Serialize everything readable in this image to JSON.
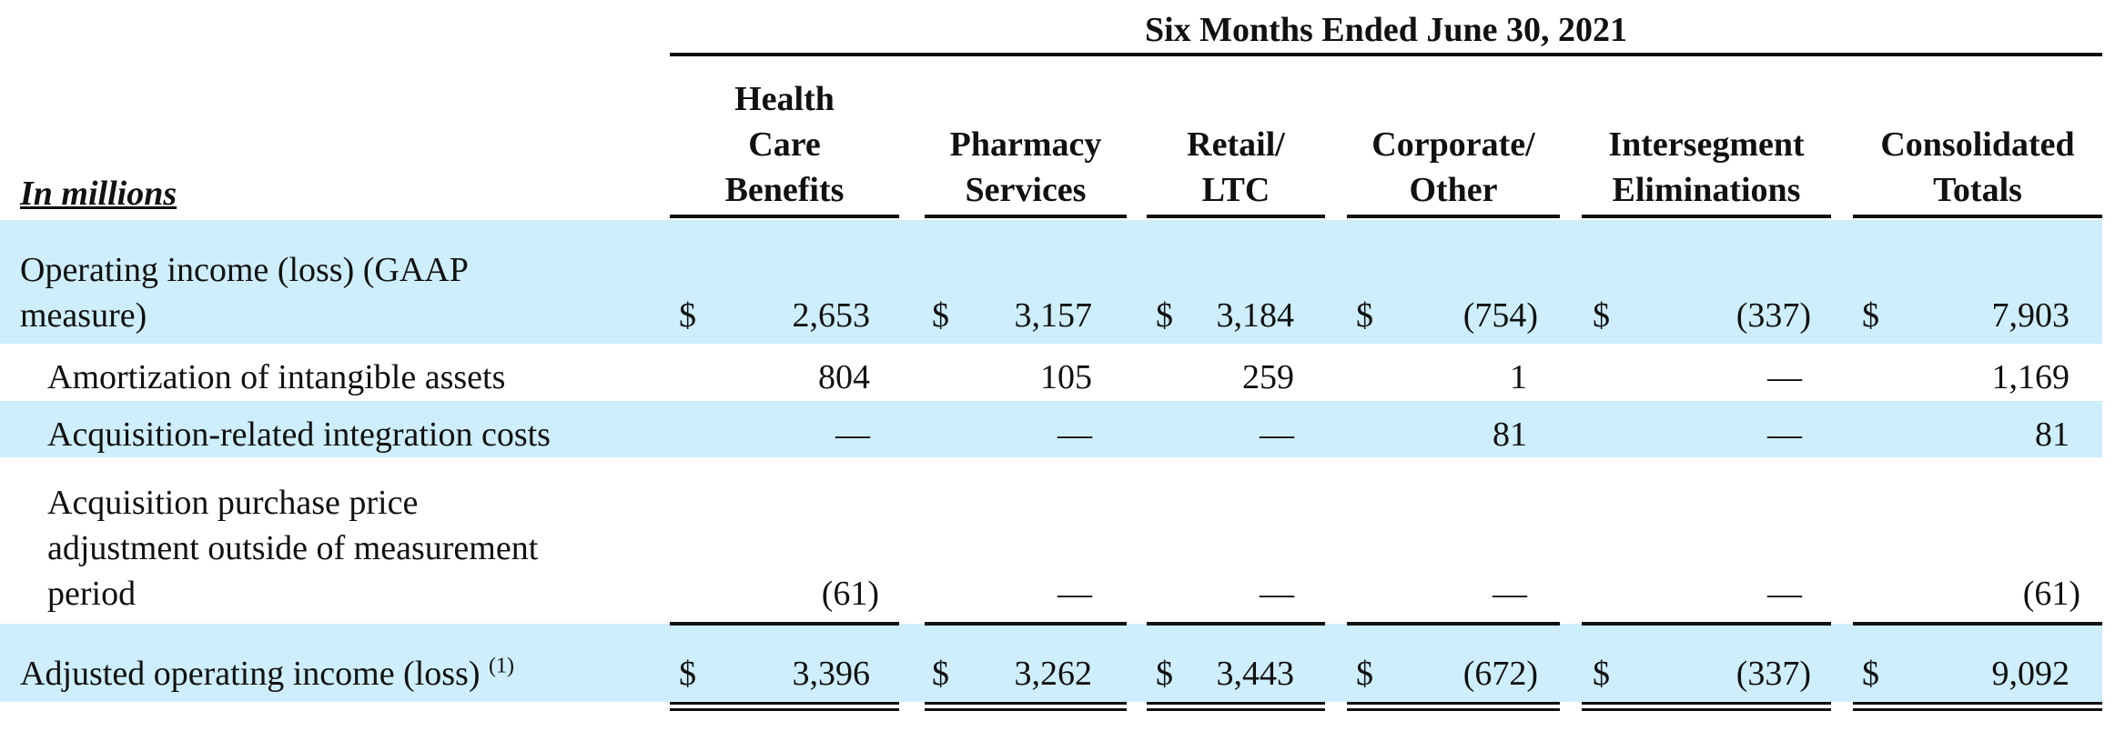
{
  "period_header": "Six Months Ended June 30, 2021",
  "units_label": "In millions",
  "columns": [
    {
      "lines": [
        "Health",
        "Care",
        "Benefits"
      ]
    },
    {
      "lines": [
        "Pharmacy",
        "Services"
      ]
    },
    {
      "lines": [
        "Retail/",
        "LTC"
      ]
    },
    {
      "lines": [
        "Corporate/",
        "Other"
      ]
    },
    {
      "lines": [
        "Intersegment",
        "Eliminations"
      ]
    },
    {
      "lines": [
        "Consolidated",
        "Totals"
      ]
    }
  ],
  "currency_symbol": "$",
  "rows": [
    {
      "label_lines": [
        "Operating income (loss) (GAAP",
        "measure)"
      ],
      "values": [
        "2,653",
        "3,157",
        "3,184",
        "(754)",
        "(337)",
        "7,903"
      ],
      "show_currency": true
    },
    {
      "label_lines": [
        "Amortization of intangible assets"
      ],
      "values": [
        "804",
        "105",
        "259",
        "1",
        "—",
        "1,169"
      ],
      "show_currency": false
    },
    {
      "label_lines": [
        "Acquisition-related integration costs"
      ],
      "values": [
        "—",
        "—",
        "—",
        "81",
        "—",
        "81"
      ],
      "show_currency": false
    },
    {
      "label_lines": [
        "Acquisition purchase price",
        "adjustment outside of measurement",
        "period"
      ],
      "values": [
        "(61)",
        "—",
        "—",
        "—",
        "—",
        "(61)"
      ],
      "show_currency": false
    },
    {
      "label_lines": [
        "Adjusted operating income (loss)"
      ],
      "footnote": "(1)",
      "values": [
        "3,396",
        "3,262",
        "3,443",
        "(672)",
        "(337)",
        "9,092"
      ],
      "show_currency": true
    }
  ],
  "colors": {
    "band": "#cdeefa",
    "text": "#111111"
  }
}
